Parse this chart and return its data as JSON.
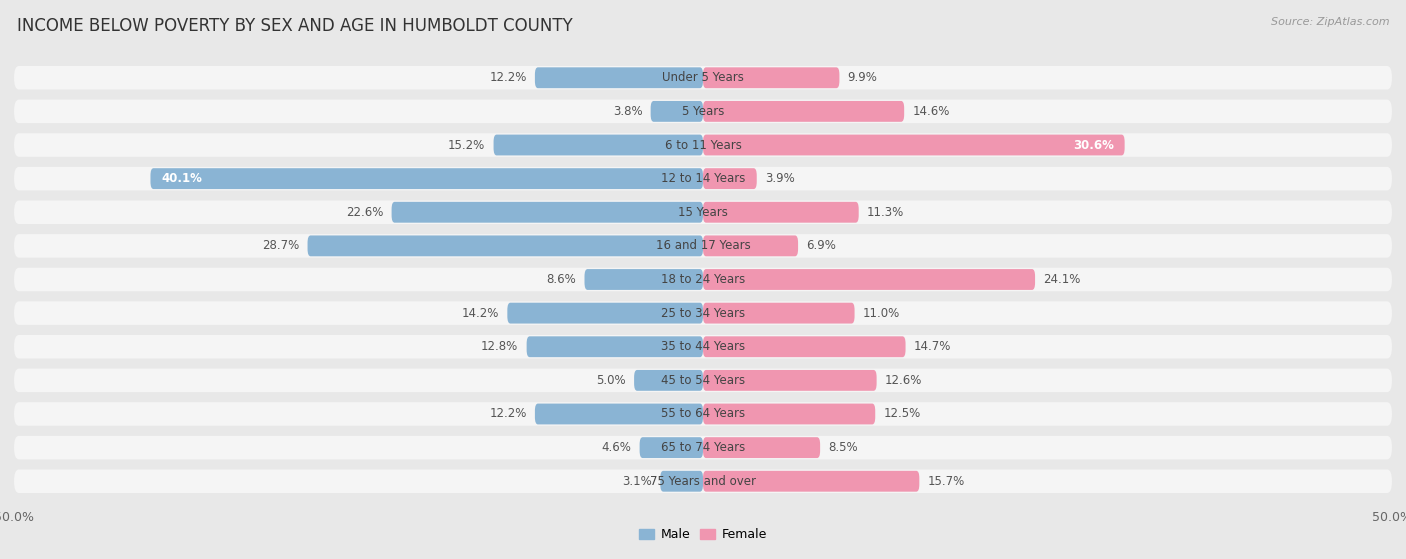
{
  "title": "INCOME BELOW POVERTY BY SEX AND AGE IN HUMBOLDT COUNTY",
  "source": "Source: ZipAtlas.com",
  "categories": [
    "Under 5 Years",
    "5 Years",
    "6 to 11 Years",
    "12 to 14 Years",
    "15 Years",
    "16 and 17 Years",
    "18 to 24 Years",
    "25 to 34 Years",
    "35 to 44 Years",
    "45 to 54 Years",
    "55 to 64 Years",
    "65 to 74 Years",
    "75 Years and over"
  ],
  "male": [
    12.2,
    3.8,
    15.2,
    40.1,
    22.6,
    28.7,
    8.6,
    14.2,
    12.8,
    5.0,
    12.2,
    4.6,
    3.1
  ],
  "female": [
    9.9,
    14.6,
    30.6,
    3.9,
    11.3,
    6.9,
    24.1,
    11.0,
    14.7,
    12.6,
    12.5,
    8.5,
    15.7
  ],
  "male_color": "#8ab4d4",
  "female_color": "#f096b0",
  "male_label": "Male",
  "female_label": "Female",
  "background_color": "#e8e8e8",
  "row_bg_color": "#f5f5f5",
  "axis_limit": 50.0,
  "title_fontsize": 12,
  "label_fontsize": 8.5,
  "tick_fontsize": 9,
  "source_fontsize": 8,
  "value_fontsize": 8.5
}
